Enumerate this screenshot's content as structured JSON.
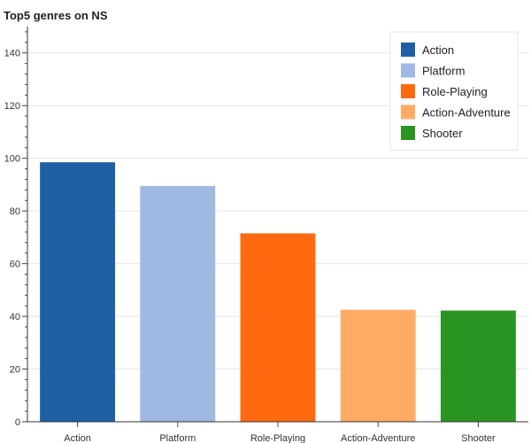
{
  "chart_data": {
    "type": "bar",
    "title": "Top5 genres on NS",
    "xlabel": "",
    "ylabel": "",
    "categories": [
      "Action",
      "Platform",
      "Role-Playing",
      "Action-Adventure",
      "Shooter"
    ],
    "values": [
      98.5,
      89.5,
      71.5,
      42.5,
      42.2
    ],
    "colors": [
      "#1f5fa6",
      "#9fb9e2",
      "#ff6a10",
      "#ffab66",
      "#2a9422"
    ],
    "ylim": [
      0,
      150
    ],
    "yticks": [
      0,
      20,
      40,
      60,
      80,
      100,
      120,
      140
    ],
    "grid": true,
    "legend": {
      "placement": "top-right",
      "entries": [
        "Action",
        "Platform",
        "Role-Playing",
        "Action-Adventure",
        "Shooter"
      ]
    }
  }
}
